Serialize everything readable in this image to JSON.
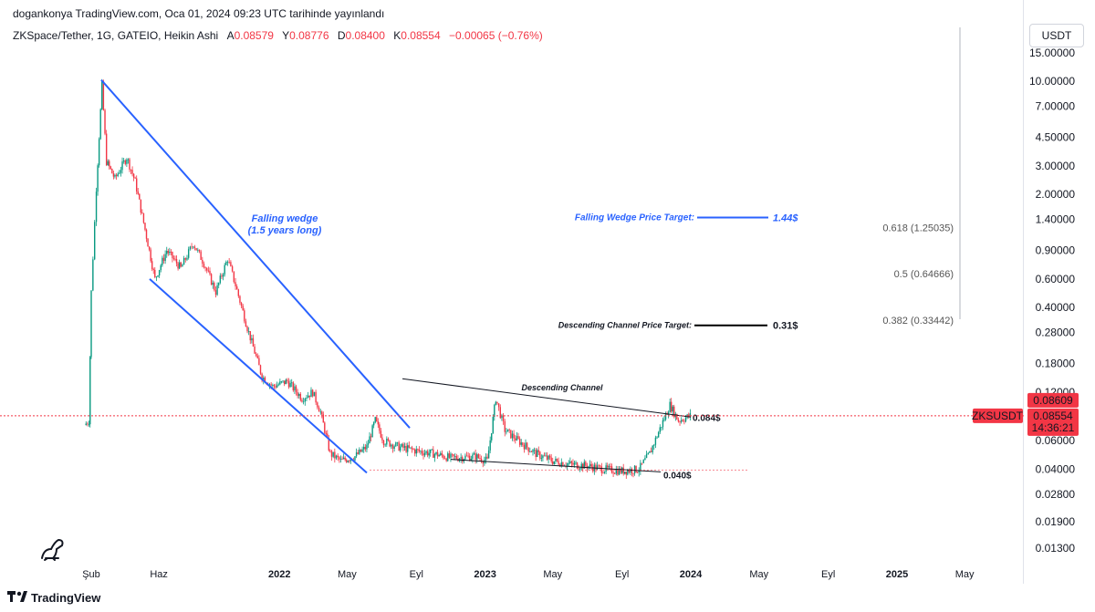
{
  "publication": {
    "text": "dogankonya TradingView.com, Oca 01, 2024 09:23 UTC tarihinde yayınlandı"
  },
  "symbol_bar": {
    "name": "ZKSpace/Tether, 1G, GATEIO, Heikin Ashi",
    "open_label": "A",
    "open": "0.08579",
    "high_label": "Y",
    "high": "0.08776",
    "low_label": "D",
    "low": "0.08400",
    "close_label": "K",
    "close": "0.08554",
    "change": "−0.00065 (−0.76%)"
  },
  "currency": "USDT",
  "branding": {
    "name": "TradingView"
  },
  "colors": {
    "up": "#089981",
    "down": "#f23645",
    "wedge": "#2962ff",
    "channel": "#131722",
    "price": "#f23645"
  },
  "chart_data": {
    "type": "candlestick",
    "scale": "log",
    "y_ticks": [
      "15.00000",
      "10.00000",
      "7.00000",
      "4.50000",
      "3.00000",
      "2.00000",
      "1.40000",
      "0.90000",
      "0.60000",
      "0.40000",
      "0.28000",
      "0.18000",
      "0.12000",
      "0.06000",
      "0.04000",
      "0.02800",
      "0.01900",
      "0.01300"
    ],
    "x_ticks": [
      {
        "label": "Şub",
        "bold": false
      },
      {
        "label": "Haz",
        "bold": false
      },
      {
        "label": "2022",
        "bold": true
      },
      {
        "label": "May",
        "bold": false
      },
      {
        "label": "Eyl",
        "bold": false
      },
      {
        "label": "2023",
        "bold": true
      },
      {
        "label": "May",
        "bold": false
      },
      {
        "label": "Eyl",
        "bold": false
      },
      {
        "label": "2024",
        "bold": true
      },
      {
        "label": "May",
        "bold": false
      },
      {
        "label": "Eyl",
        "bold": false
      },
      {
        "label": "2025",
        "bold": true
      },
      {
        "label": "May",
        "bold": false
      }
    ],
    "price_path": [
      {
        "d": "2021-01-20",
        "p": 0.075
      },
      {
        "d": "2021-01-28",
        "p": 0.08
      },
      {
        "d": "2021-02-01",
        "p": 0.5
      },
      {
        "d": "2021-02-10",
        "p": 2.2
      },
      {
        "d": "2021-02-20",
        "p": 9.5
      },
      {
        "d": "2021-02-28",
        "p": 3.2
      },
      {
        "d": "2021-03-15",
        "p": 2.5
      },
      {
        "d": "2021-04-05",
        "p": 3.4
      },
      {
        "d": "2021-04-20",
        "p": 2.4
      },
      {
        "d": "2021-05-10",
        "p": 1.1
      },
      {
        "d": "2021-05-25",
        "p": 0.6
      },
      {
        "d": "2021-06-15",
        "p": 0.9
      },
      {
        "d": "2021-07-10",
        "p": 0.7
      },
      {
        "d": "2021-08-01",
        "p": 1.0
      },
      {
        "d": "2021-08-20",
        "p": 0.75
      },
      {
        "d": "2021-09-10",
        "p": 0.5
      },
      {
        "d": "2021-10-01",
        "p": 0.8
      },
      {
        "d": "2021-10-15",
        "p": 0.55
      },
      {
        "d": "2021-11-05",
        "p": 0.3
      },
      {
        "d": "2021-12-01",
        "p": 0.15
      },
      {
        "d": "2021-12-20",
        "p": 0.13
      },
      {
        "d": "2022-01-15",
        "p": 0.14
      },
      {
        "d": "2022-02-10",
        "p": 0.11
      },
      {
        "d": "2022-03-01",
        "p": 0.12
      },
      {
        "d": "2022-03-15",
        "p": 0.09
      },
      {
        "d": "2022-04-01",
        "p": 0.05
      },
      {
        "d": "2022-04-20",
        "p": 0.045
      },
      {
        "d": "2022-05-15",
        "p": 0.048
      },
      {
        "d": "2022-06-05",
        "p": 0.055
      },
      {
        "d": "2022-06-20",
        "p": 0.08
      },
      {
        "d": "2022-07-05",
        "p": 0.06
      },
      {
        "d": "2022-08-01",
        "p": 0.055
      },
      {
        "d": "2022-09-01",
        "p": 0.052
      },
      {
        "d": "2022-10-01",
        "p": 0.05
      },
      {
        "d": "2022-11-01",
        "p": 0.047
      },
      {
        "d": "2022-12-15",
        "p": 0.048
      },
      {
        "d": "2023-01-05",
        "p": 0.045
      },
      {
        "d": "2023-01-20",
        "p": 0.11
      },
      {
        "d": "2023-02-05",
        "p": 0.07
      },
      {
        "d": "2023-03-01",
        "p": 0.06
      },
      {
        "d": "2023-04-01",
        "p": 0.05
      },
      {
        "d": "2023-05-01",
        "p": 0.045
      },
      {
        "d": "2023-06-01",
        "p": 0.043
      },
      {
        "d": "2023-07-01",
        "p": 0.042
      },
      {
        "d": "2023-08-01",
        "p": 0.04
      },
      {
        "d": "2023-09-01",
        "p": 0.039
      },
      {
        "d": "2023-10-01",
        "p": 0.04
      },
      {
        "d": "2023-10-20",
        "p": 0.05
      },
      {
        "d": "2023-11-10",
        "p": 0.075
      },
      {
        "d": "2023-11-25",
        "p": 0.1
      },
      {
        "d": "2023-12-10",
        "p": 0.08
      },
      {
        "d": "2023-12-31",
        "p": 0.0855
      }
    ],
    "annotations": {
      "wedge_label_1": "Falling wedge",
      "wedge_label_2": "(1.5 years long)",
      "channel_label": "Descending Channel",
      "fw_target_label": "Falling Wedge Price Target:",
      "fw_target_value": "1.44$",
      "dc_target_label": "Descending Channel Price Target:",
      "dc_target_value": "0.31$",
      "level_high": "0.084$",
      "level_low": "0.040$"
    },
    "fib_levels": [
      {
        "label": "0.618 (1.25035)",
        "p": 1.25035
      },
      {
        "label": "0.5 (0.64666)",
        "p": 0.64666
      },
      {
        "label": "0.382 (0.33442)",
        "p": 0.33442
      }
    ],
    "last_price": {
      "symbol": "ZKSUSDT",
      "value": "0.08554",
      "prev": "0.08609",
      "countdown": "14:36:21",
      "p": 0.08554
    }
  }
}
